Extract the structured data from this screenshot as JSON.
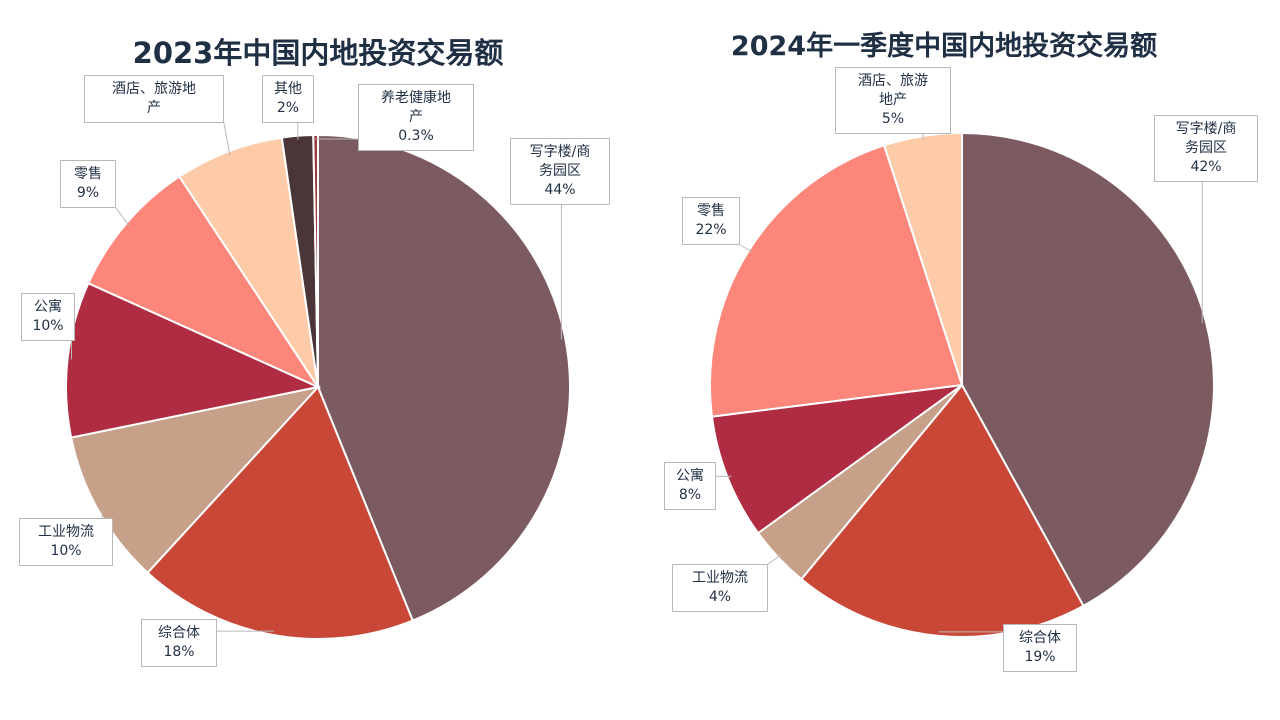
{
  "chart_data": [
    {
      "type": "pie",
      "title": "2023年中国内地投资交易额",
      "unit": "%",
      "slices": [
        {
          "name": "写字楼/商务园区",
          "value": 44,
          "label": "44%",
          "color": "#7b5a60"
        },
        {
          "name": "综合体",
          "value": 18,
          "label": "18%",
          "color": "#c94737"
        },
        {
          "name": "工业物流",
          "value": 10,
          "label": "10%",
          "color": "#c7a089"
        },
        {
          "name": "公寓",
          "value": 10,
          "label": "10%",
          "color": "#b02c43"
        },
        {
          "name": "零售",
          "value": 9,
          "label": "9%",
          "color": "#fd867a"
        },
        {
          "name": "酒店、旅游地产",
          "value": 7,
          "label": "",
          "color": "#fecba9"
        },
        {
          "name": "其他",
          "value": 2,
          "label": "2%",
          "color": "#4a3538"
        },
        {
          "name": "养老健康地产",
          "value": 0.3,
          "label": "0.3%",
          "color": "#9b3b3b"
        }
      ]
    },
    {
      "type": "pie",
      "title": "2024年一季度中国内地投资交易额",
      "unit": "%",
      "slices": [
        {
          "name": "写字楼/商务园区",
          "value": 42,
          "label": "42%",
          "color": "#7b5a60"
        },
        {
          "name": "综合体",
          "value": 19,
          "label": "19%",
          "color": "#c94737"
        },
        {
          "name": "工业物流",
          "value": 4,
          "label": "4%",
          "color": "#c7a089"
        },
        {
          "name": "公寓",
          "value": 8,
          "label": "8%",
          "color": "#b02c43"
        },
        {
          "name": "零售",
          "value": 22,
          "label": "22%",
          "color": "#fd867a"
        },
        {
          "name": "酒店、旅游地产",
          "value": 5,
          "label": "5%",
          "color": "#fecba9"
        }
      ]
    }
  ]
}
